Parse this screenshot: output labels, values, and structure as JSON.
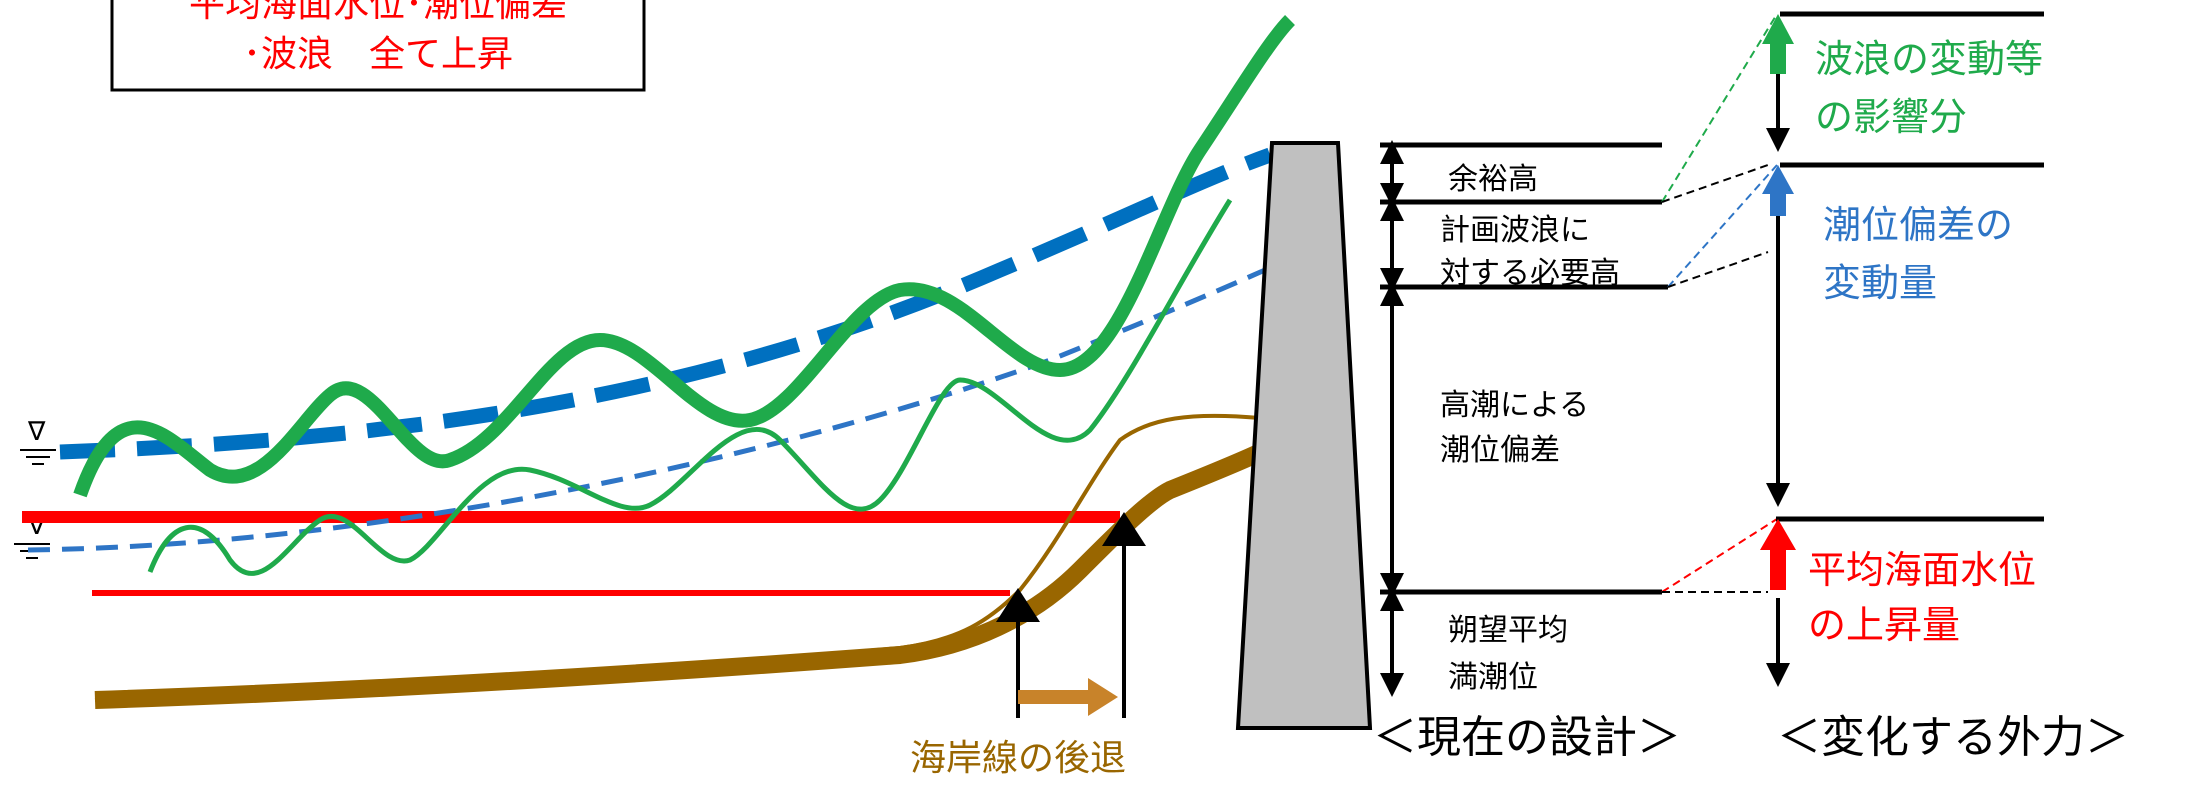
{
  "legend_box": {
    "line1": "平均海面水位･潮位偏差",
    "line2": "･波浪　全て上昇"
  },
  "current_design": {
    "labels": {
      "margin": "余裕高",
      "wave_req_1": "計画波浪に",
      "wave_req_2": "対する必要高",
      "surge_1": "高潮による",
      "surge_2": "潮位偏差",
      "hwl_1": "朔望平均",
      "hwl_2": "満潮位"
    },
    "caption": "＜現在の設計＞"
  },
  "changing_forces": {
    "wave": {
      "line1": "波浪の変動等",
      "line2": "の影響分",
      "color": "#1faa4b"
    },
    "surge": {
      "line1": "潮位偏差の",
      "line2": "変動量",
      "color": "#2e75c6"
    },
    "sea_level": {
      "line1": "平均海面水位",
      "line2": "の上昇量",
      "color": "#ff0000"
    },
    "caption": "＜変化する外力＞"
  },
  "shoreline": {
    "label": "海岸線の後退",
    "color": "#996600"
  },
  "water_symbol": "∇",
  "colors": {
    "sea_level_red": "#ff0000",
    "surge_blue": "#0070c0",
    "wave_green": "#1faa4b",
    "sand_brown": "#996600",
    "seawall_gray": "#c0c0c0"
  }
}
